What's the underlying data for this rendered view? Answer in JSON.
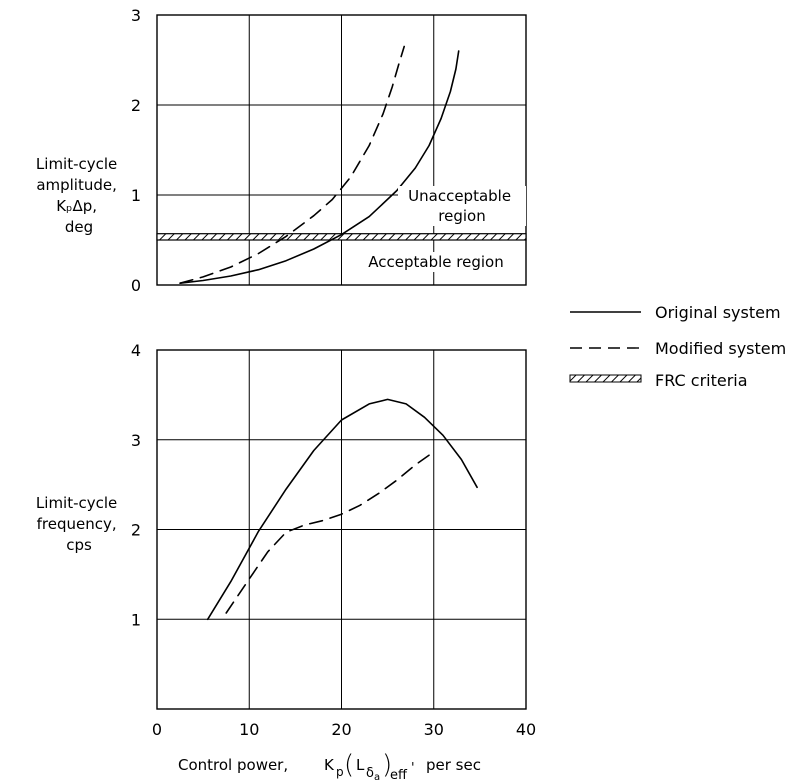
{
  "chart_data": [
    {
      "type": "line",
      "ylabel_lines": [
        "Limit-cycle",
        "amplitude,",
        "KₚΔp,",
        "deg"
      ],
      "xlim": [
        0,
        40
      ],
      "ylim": [
        0,
        3
      ],
      "xticks": [
        0,
        10,
        20,
        30,
        40
      ],
      "yticks": [
        0,
        1,
        2,
        3
      ],
      "grid": true,
      "series": [
        {
          "name": "Original system",
          "style": "solid",
          "x": [
            2.5,
            5,
            8,
            11,
            14,
            17,
            20,
            23,
            26,
            28,
            29.5,
            30.8,
            31.8,
            32.4,
            32.7
          ],
          "y": [
            0.02,
            0.05,
            0.1,
            0.17,
            0.27,
            0.4,
            0.56,
            0.76,
            1.05,
            1.3,
            1.55,
            1.85,
            2.15,
            2.4,
            2.6
          ]
        },
        {
          "name": "Modified system",
          "style": "dashed",
          "x": [
            2.5,
            5,
            8,
            11,
            14,
            17,
            19,
            21,
            23,
            24.5,
            25.5,
            26.2,
            26.8
          ],
          "y": [
            0.02,
            0.09,
            0.2,
            0.35,
            0.54,
            0.77,
            0.95,
            1.2,
            1.55,
            1.9,
            2.2,
            2.45,
            2.65
          ]
        }
      ],
      "criteria_band": {
        "name": "FRC criteria",
        "y": [
          0.5,
          0.57
        ]
      },
      "annotations": {
        "unacceptable": [
          "Unacceptable",
          "region"
        ],
        "acceptable": "Acceptable region"
      }
    },
    {
      "type": "line",
      "ylabel_lines": [
        "Limit-cycle",
        "frequency,",
        "cps"
      ],
      "xlabel": "Control power,",
      "xlabel_math": {
        "k": "K",
        "p": "p",
        "l": "L",
        "delta": "δ",
        "a": "a",
        "eff": "eff",
        "prime": "'"
      },
      "xlabel_units": "per sec",
      "xlim": [
        0,
        40
      ],
      "ylim": [
        0,
        4
      ],
      "xticks": [
        0,
        10,
        20,
        30,
        40
      ],
      "yticks": [
        1,
        2,
        3,
        4
      ],
      "grid": true,
      "series": [
        {
          "name": "Original system",
          "style": "solid",
          "x": [
            5.5,
            8,
            11,
            14,
            17,
            20,
            23,
            25,
            27,
            29,
            31,
            33,
            34.7
          ],
          "y": [
            1.0,
            1.42,
            1.98,
            2.45,
            2.88,
            3.22,
            3.4,
            3.45,
            3.4,
            3.25,
            3.05,
            2.78,
            2.47
          ]
        },
        {
          "name": "Modified system",
          "style": "dashed",
          "x": [
            7.5,
            10,
            12,
            14,
            16,
            18,
            20,
            22,
            24,
            26,
            28,
            29.8
          ],
          "y": [
            1.07,
            1.45,
            1.75,
            1.97,
            2.05,
            2.1,
            2.17,
            2.27,
            2.4,
            2.55,
            2.72,
            2.85
          ]
        }
      ]
    }
  ],
  "legend": {
    "items": [
      {
        "label": "Original system",
        "style": "solid"
      },
      {
        "label": "Modified system",
        "style": "dashed"
      },
      {
        "label": "FRC criteria",
        "style": "hatch"
      }
    ]
  }
}
